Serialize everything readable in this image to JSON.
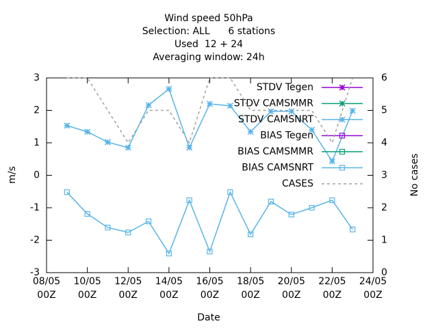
{
  "chart_data": {
    "type": "line",
    "title": [
      "Wind speed 50hPa",
      "Selection: ALL      6 stations",
      "Used  12 + 24",
      "Averaging window: 24h"
    ],
    "x_label": "Date",
    "y_label": "m/s",
    "y2_label": "No cases",
    "x": [
      9,
      10,
      11,
      12,
      13,
      14,
      15,
      16,
      17,
      18,
      19,
      20,
      21,
      22,
      23
    ],
    "xlim": [
      8,
      24
    ],
    "xticks": [
      {
        "value": 8,
        "label": "08/05\n00Z"
      },
      {
        "value": 10,
        "label": "10/05\n00Z"
      },
      {
        "value": 12,
        "label": "12/05\n00Z"
      },
      {
        "value": 14,
        "label": "14/05\n00Z"
      },
      {
        "value": 16,
        "label": "16/05\n00Z"
      },
      {
        "value": 18,
        "label": "18/05\n00Z"
      },
      {
        "value": 20,
        "label": "20/05\n00Z"
      },
      {
        "value": 22,
        "label": "22/05\n00Z"
      },
      {
        "value": 24,
        "label": "24/05\n00Z"
      }
    ],
    "ylim": [
      -3,
      3
    ],
    "yticks": [
      -3,
      -2,
      -1,
      0,
      1,
      2,
      3
    ],
    "y2lim": [
      0,
      6
    ],
    "y2ticks": [
      0,
      1,
      2,
      3,
      4,
      5,
      6
    ],
    "legend": "upper right",
    "series": [
      {
        "name": "STDV Tegen",
        "color": "#9400d3",
        "marker": "x",
        "values": [
          null,
          null,
          null,
          null,
          null,
          null,
          null,
          null,
          null,
          null,
          null,
          null,
          null,
          null,
          null
        ]
      },
      {
        "name": "STDV CAMSMMR",
        "color": "#009e73",
        "marker": "x",
        "values": [
          null,
          null,
          null,
          null,
          null,
          null,
          null,
          null,
          null,
          null,
          null,
          null,
          null,
          null,
          null
        ]
      },
      {
        "name": "STDV CAMSNRT",
        "color": "#56b4e9",
        "marker": "x",
        "values": [
          1.53,
          1.34,
          1.02,
          0.85,
          2.16,
          2.66,
          0.85,
          2.2,
          2.14,
          1.34,
          1.97,
          1.97,
          1.4,
          0.43,
          1.99
        ]
      },
      {
        "name": "BIAS Tegen",
        "color": "#9400d3",
        "marker": "square",
        "values": [
          null,
          null,
          null,
          null,
          null,
          null,
          null,
          null,
          null,
          null,
          null,
          null,
          null,
          null,
          null
        ]
      },
      {
        "name": "BIAS CAMSMMR",
        "color": "#009e73",
        "marker": "square",
        "values": [
          null,
          null,
          null,
          null,
          null,
          null,
          null,
          null,
          null,
          null,
          null,
          null,
          null,
          null,
          null
        ]
      },
      {
        "name": "BIAS CAMSNRT",
        "color": "#56b4e9",
        "marker": "square",
        "values": [
          -0.52,
          -1.19,
          -1.61,
          -1.76,
          -1.42,
          -2.41,
          -0.77,
          -2.35,
          -0.52,
          -1.82,
          -0.81,
          -1.21,
          -1.0,
          -0.77,
          -1.67
        ]
      },
      {
        "name": "CASES",
        "color": "#a0a0a0",
        "dash": true,
        "axis": "y2",
        "values": [
          6,
          6,
          5,
          4,
          5,
          5,
          4,
          6,
          6,
          5,
          5,
          5,
          5,
          4,
          6
        ]
      }
    ]
  }
}
